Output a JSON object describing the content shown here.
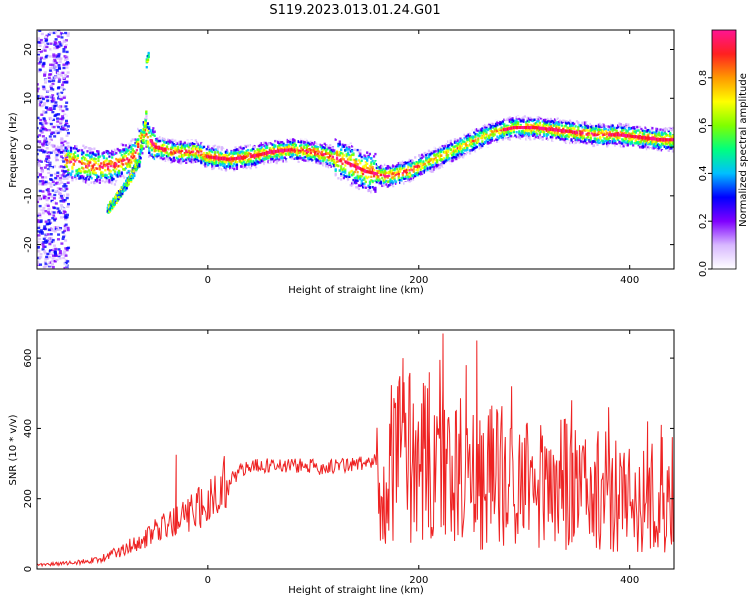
{
  "title": "S119.2023.013.01.24.G01",
  "chart_data": [
    {
      "type": "heatmap",
      "xlabel": "Height of straight line (km)",
      "ylabel": "Frequency (Hz)",
      "xlim": [
        -162,
        442
      ],
      "ylim": [
        -25,
        24
      ],
      "xticks": [
        0,
        200,
        400
      ],
      "yticks": [
        -20,
        -10,
        0,
        10,
        20
      ],
      "colorbar": {
        "label": "Normalized spectral amplitude",
        "range": [
          0,
          1
        ],
        "ticks": [
          "0.0",
          "0.2",
          "0.4",
          "0.6",
          "0.8"
        ],
        "colors": [
          "#ffffff",
          "#d8b8ff",
          "#7f00ff",
          "#0000ff",
          "#00bfff",
          "#00ff7f",
          "#7fff00",
          "#ffff00",
          "#ff9900",
          "#ff2020",
          "#ff1493"
        ]
      },
      "ridge": {
        "x": [
          -130,
          -110,
          -90,
          -70,
          -60,
          -50,
          -30,
          -10,
          0,
          20,
          40,
          60,
          80,
          100,
          110,
          130,
          150,
          170,
          190,
          210,
          230,
          250,
          270,
          290,
          310,
          330,
          350,
          370,
          390,
          410,
          430,
          442
        ],
        "y": [
          -3,
          -4,
          -4,
          -2,
          3,
          0,
          -1,
          -1,
          -2,
          -2.5,
          -2,
          -1,
          -0.5,
          -1,
          -1.5,
          -3,
          -5,
          -6,
          -5,
          -3,
          -1,
          1,
          3,
          4,
          4,
          3.5,
          3,
          2.5,
          2.5,
          2,
          1.5,
          1.5
        ]
      },
      "branches": [
        {
          "x": [
            -95,
            -85,
            -75,
            -65,
            -60,
            -58
          ],
          "y": [
            -13,
            -10,
            -7,
            -3,
            4,
            8
          ]
        },
        {
          "x": [
            -58,
            -56
          ],
          "y": [
            17,
            19
          ]
        }
      ]
    },
    {
      "type": "line",
      "xlabel": "Height of straight line (km)",
      "ylabel": "SNR (10 * v/v)",
      "xlim": [
        -162,
        442
      ],
      "ylim": [
        0,
        680
      ],
      "xticks": [
        0,
        200,
        400
      ],
      "yticks": [
        0,
        200,
        400,
        600
      ],
      "series": [
        {
          "color": "#ee2222",
          "envelope": {
            "x": [
              -162,
              -140,
              -120,
              -100,
              -80,
              -60,
              -40,
              -20,
              0,
              20,
              40,
              60,
              80,
              100,
              120,
              140,
              160,
              170,
              180,
              190,
              200,
              210,
              220,
              230,
              240,
              250,
              260,
              270,
              280,
              300,
              320,
              340,
              360,
              380,
              400,
              420,
              442
            ],
            "y": [
              12,
              15,
              20,
              30,
              55,
              90,
              120,
              150,
              190,
              260,
              290,
              295,
              295,
              290,
              292,
              298,
              305,
              320,
              340,
              330,
              320,
              310,
              300,
              290,
              280,
              270,
              260,
              270,
              260,
              250,
              250,
              240,
              230,
              220,
              200,
              200,
              230
            ]
          },
          "peaks": {
            "x": [
              -30,
              180,
              185,
              210,
              220,
              223,
              245,
              255,
              288,
              345,
              380,
              417,
              430
            ],
            "y": [
              325,
              520,
              600,
              560,
              595,
              670,
              580,
              650,
              520,
              480,
              460,
              420,
              410
            ]
          }
        }
      ]
    }
  ]
}
